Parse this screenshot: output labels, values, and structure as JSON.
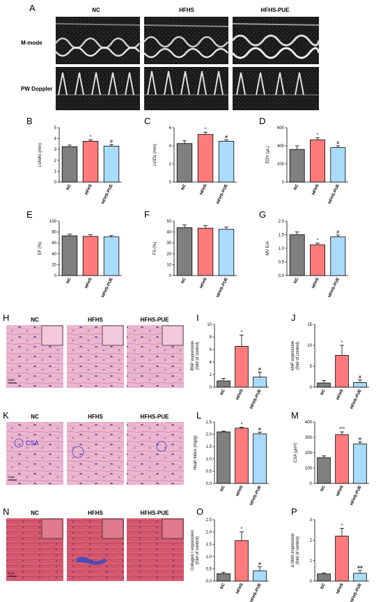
{
  "panel_letters": [
    "A",
    "B",
    "C",
    "D",
    "E",
    "F",
    "G",
    "H",
    "I",
    "J",
    "K",
    "L",
    "M",
    "N",
    "O",
    "P"
  ],
  "groups": [
    "NC",
    "HFHS",
    "HFHS-PUE"
  ],
  "colors": {
    "NC": "#7f7f7f",
    "HFHS": "#ff7b7b",
    "HFHS-PUE": "#a9dcfa"
  },
  "echo": {
    "row_labels": [
      "M-mode",
      "PW Doppler"
    ]
  },
  "histology": {
    "scale_bar_label": "50μm",
    "csa_label": "CSA"
  },
  "chart_data": [
    {
      "panel": "B",
      "type": "bar",
      "categories": [
        "NC",
        "HFHS",
        "HFHS-PUE"
      ],
      "values": [
        3.25,
        3.75,
        3.3
      ],
      "errors": [
        0.15,
        0.12,
        0.15
      ],
      "significance": [
        "",
        "*",
        "#"
      ],
      "ylabel": "LVAWs (mm)",
      "ylim": [
        0,
        5
      ],
      "yticks": [
        0,
        1,
        2,
        3,
        4,
        5
      ]
    },
    {
      "panel": "C",
      "type": "bar",
      "categories": [
        "NC",
        "HFHS",
        "HFHS-PUE"
      ],
      "values": [
        4.25,
        5.25,
        4.5
      ],
      "errors": [
        0.3,
        0.25,
        0.15
      ],
      "significance": [
        "",
        "*",
        "#"
      ],
      "ylabel": "LVIDs (mm)",
      "ylim": [
        0,
        6
      ],
      "yticks": [
        0,
        2,
        4,
        6
      ]
    },
    {
      "panel": "D",
      "type": "bar",
      "categories": [
        "NC",
        "HFHS",
        "HFHS-PUE"
      ],
      "values": [
        360,
        465,
        380
      ],
      "errors": [
        40,
        25,
        20
      ],
      "significance": [
        "",
        "*",
        "#"
      ],
      "ylabel": "EDV (μL)",
      "ylim": [
        0,
        600
      ],
      "yticks": [
        0,
        200,
        400,
        600
      ]
    },
    {
      "panel": "E",
      "type": "bar",
      "categories": [
        "NC",
        "HFHS",
        "HFHS-PUE"
      ],
      "values": [
        73,
        72,
        71
      ],
      "errors": [
        3,
        3,
        2.5
      ],
      "significance": [
        "",
        "",
        ""
      ],
      "ylabel": "EF (%)",
      "ylim": [
        0,
        100
      ],
      "yticks": [
        0,
        20,
        40,
        60,
        80,
        100
      ]
    },
    {
      "panel": "F",
      "type": "bar",
      "categories": [
        "NC",
        "HFHS",
        "HFHS-PUE"
      ],
      "values": [
        44,
        43.5,
        42.5
      ],
      "errors": [
        2.5,
        2.5,
        2
      ],
      "significance": [
        "",
        "",
        ""
      ],
      "ylabel": "FS (%)",
      "ylim": [
        0,
        50
      ],
      "yticks": [
        0,
        10,
        20,
        30,
        40,
        50
      ]
    },
    {
      "panel": "G",
      "type": "bar",
      "categories": [
        "NC",
        "HFHS",
        "HFHS-PUE"
      ],
      "values": [
        1.5,
        1.13,
        1.42
      ],
      "errors": [
        0.1,
        0.06,
        0.07
      ],
      "significance": [
        "",
        "*",
        "#"
      ],
      "ylabel": "MV E/A",
      "ylim": [
        0,
        2.0
      ],
      "yticks": [
        0.0,
        0.5,
        1.0,
        1.5,
        2.0
      ]
    },
    {
      "panel": "I",
      "type": "bar",
      "categories": [
        "NC",
        "HFHS",
        "HFHS-PUE"
      ],
      "values": [
        1.0,
        6.5,
        1.6
      ],
      "errors": [
        0.4,
        1.8,
        0.8
      ],
      "significance": [
        "",
        "*",
        "#"
      ],
      "ylabel": "BNP expression\n(fold of control)",
      "ylim": [
        0,
        10
      ],
      "yticks": [
        0,
        2,
        4,
        6,
        8,
        10
      ]
    },
    {
      "panel": "J",
      "type": "bar",
      "categories": [
        "NC",
        "HFHS",
        "HFHS-PUE"
      ],
      "values": [
        1.0,
        7.6,
        1.1
      ],
      "errors": [
        0.6,
        2.4,
        0.6
      ],
      "significance": [
        "",
        "*",
        "#"
      ],
      "ylabel": "ANP expression\n(fold of control)",
      "ylim": [
        0,
        15
      ],
      "yticks": [
        0,
        5,
        10,
        15
      ]
    },
    {
      "panel": "L",
      "type": "bar",
      "categories": [
        "NC",
        "HFHS",
        "HFHS-PUE"
      ],
      "values": [
        2.1,
        2.25,
        2.02
      ],
      "errors": [
        0.03,
        0.04,
        0.07
      ],
      "significance": [
        "",
        "*",
        "#"
      ],
      "ylabel": "Heart index (mg/g)",
      "ylim": [
        0,
        2.5
      ],
      "yticks": [
        0.0,
        0.5,
        1.0,
        1.5,
        2.0,
        2.5
      ]
    },
    {
      "panel": "M",
      "type": "bar",
      "categories": [
        "NC",
        "HFHS",
        "HFHS-PUE"
      ],
      "values": [
        168,
        318,
        258
      ],
      "errors": [
        12,
        18,
        12
      ],
      "significance": [
        "",
        "***",
        "#"
      ],
      "ylabel": "CSA (μm²)",
      "ylim": [
        0,
        400
      ],
      "yticks": [
        0,
        100,
        200,
        300,
        400
      ]
    },
    {
      "panel": "O",
      "type": "bar",
      "categories": [
        "NC",
        "HFHS",
        "HFHS-PUE"
      ],
      "values": [
        0.3,
        1.65,
        0.42
      ],
      "errors": [
        0.06,
        0.35,
        0.16
      ],
      "significance": [
        "",
        "*",
        "#"
      ],
      "ylabel": "Collagen I expression\n(fold of control)",
      "ylim": [
        0,
        2.5
      ],
      "yticks": [
        0.0,
        0.5,
        1.0,
        1.5,
        2.0,
        2.5
      ]
    },
    {
      "panel": "P",
      "type": "bar",
      "categories": [
        "NC",
        "HFHS",
        "HFHS-PUE"
      ],
      "values": [
        0.35,
        2.2,
        0.38
      ],
      "errors": [
        0.05,
        0.38,
        0.14
      ],
      "significance": [
        "",
        "*",
        "##"
      ],
      "ylabel": "α-SMA expression\n(fold of control)",
      "ylim": [
        0,
        3
      ],
      "yticks": [
        0,
        1,
        2,
        3
      ]
    }
  ]
}
